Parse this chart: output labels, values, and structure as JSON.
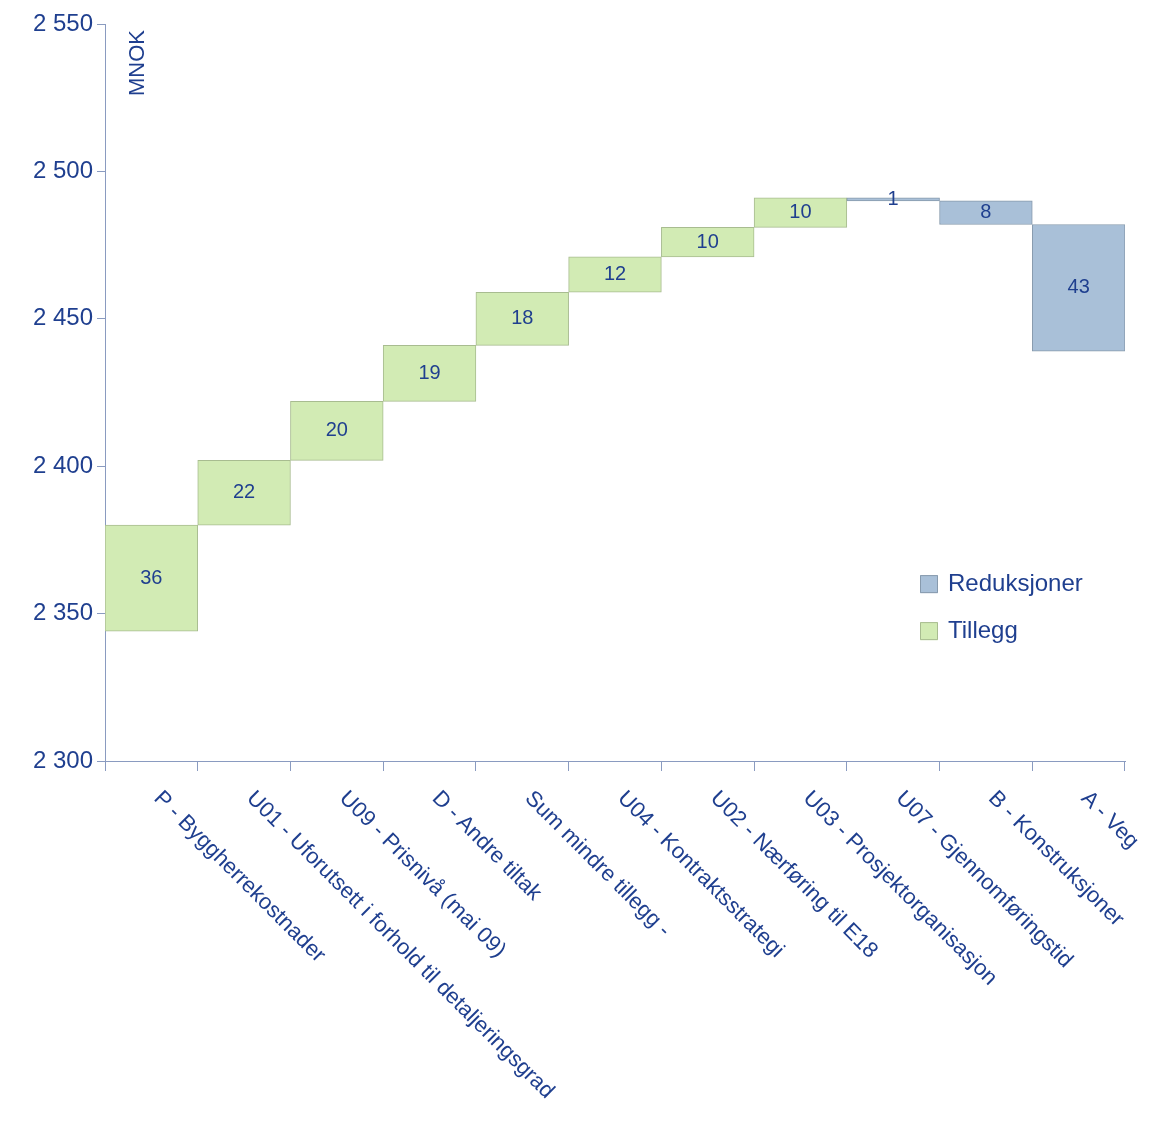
{
  "chart_data": {
    "type": "bar",
    "ylabel": "MNOK",
    "categories": [
      "P - Byggherrekostnader",
      "U01 - Uforutsett i forhold til detaljeringsgrad",
      "U09 - Prisnivå (mai 09)",
      "D - Andre tiltak",
      "Sum mindre tillegg -",
      "U04 - Kontraktsstrategi",
      "U02 - Nærføring til E18",
      "U03 - Prosjektorganisasjon",
      "U07 - Gjennomføringstid",
      "B - Konstruksjoner",
      "A - Veg"
    ],
    "series": [
      {
        "name": "Reduksjoner",
        "color": "#a9c0d8",
        "values": [
          null,
          null,
          null,
          null,
          null,
          null,
          null,
          null,
          1,
          8,
          43
        ],
        "base": [
          null,
          null,
          null,
          null,
          null,
          null,
          null,
          null,
          2490,
          2482,
          2439
        ]
      },
      {
        "name": "Tillegg",
        "color": "#d2ebb4",
        "values": [
          36,
          22,
          20,
          19,
          18,
          12,
          10,
          10,
          null,
          null,
          null
        ],
        "base": [
          2344,
          2380,
          2402,
          2422,
          2441,
          2459,
          2471,
          2481,
          null,
          null,
          null
        ]
      }
    ],
    "ylim": [
      2300,
      2550
    ],
    "yticks": [
      {
        "value": 2300,
        "label": "2 300"
      },
      {
        "value": 2350,
        "label": "2 350"
      },
      {
        "value": 2400,
        "label": "2 400"
      },
      {
        "value": 2450,
        "label": "2 450"
      },
      {
        "value": 2500,
        "label": "2 500"
      },
      {
        "value": 2550,
        "label": "2 550"
      }
    ],
    "data_labels": true,
    "legend": "right"
  }
}
